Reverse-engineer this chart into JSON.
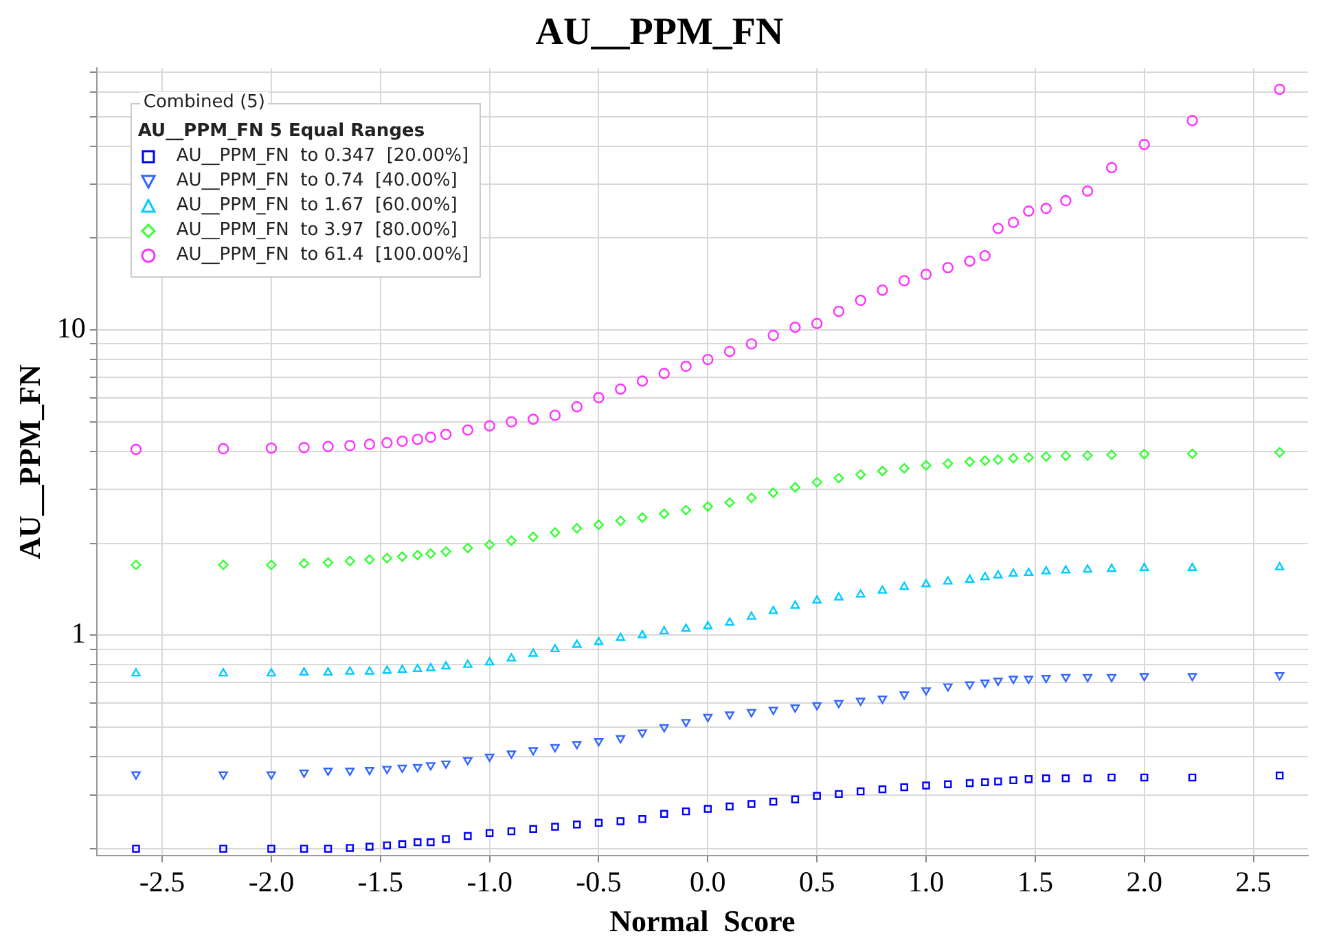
{
  "chart_data": {
    "type": "scatter",
    "title": "AU__PPM_FN",
    "xlabel": "Normal  Score",
    "ylabel": "AU__PPM_FN",
    "legend_title": "AU__PPM_FN 5 Equal Ranges",
    "annotations": [
      "Combined (5)"
    ],
    "x": [
      -2.62,
      -2.22,
      -2.0,
      -1.85,
      -1.74,
      -1.64,
      -1.55,
      -1.47,
      -1.4,
      -1.33,
      -1.27,
      -1.2,
      -1.1,
      -1.0,
      -0.9,
      -0.8,
      -0.7,
      -0.6,
      -0.5,
      -0.4,
      -0.3,
      -0.2,
      -0.1,
      0.0,
      0.1,
      0.2,
      0.3,
      0.4,
      0.5,
      0.6,
      0.7,
      0.8,
      0.9,
      1.0,
      1.1,
      1.2,
      1.27,
      1.33,
      1.4,
      1.47,
      1.55,
      1.64,
      1.74,
      1.85,
      2.0,
      2.22,
      2.62
    ],
    "series": [
      {
        "name": "AU__PPM_FN  to 0.347  [20.00%]",
        "color": "#0000ff",
        "marker": "square",
        "values": [
          0.2,
          0.2,
          0.2,
          0.2,
          0.2,
          0.201,
          0.203,
          0.205,
          0.207,
          0.21,
          0.21,
          0.215,
          0.22,
          0.225,
          0.228,
          0.232,
          0.236,
          0.24,
          0.243,
          0.246,
          0.25,
          0.26,
          0.265,
          0.27,
          0.275,
          0.28,
          0.285,
          0.29,
          0.298,
          0.302,
          0.308,
          0.313,
          0.318,
          0.322,
          0.325,
          0.328,
          0.33,
          0.332,
          0.335,
          0.338,
          0.34,
          0.34,
          0.34,
          0.342,
          0.342,
          0.342,
          0.347
        ]
      },
      {
        "name": "AU__PPM_FN  to 0.74  [40.00%]",
        "color": "#3366ff",
        "marker": "triangle-down",
        "values": [
          0.35,
          0.35,
          0.35,
          0.355,
          0.36,
          0.36,
          0.362,
          0.365,
          0.368,
          0.37,
          0.375,
          0.38,
          0.39,
          0.4,
          0.41,
          0.42,
          0.43,
          0.44,
          0.45,
          0.46,
          0.48,
          0.5,
          0.52,
          0.54,
          0.55,
          0.56,
          0.57,
          0.58,
          0.59,
          0.6,
          0.61,
          0.62,
          0.64,
          0.66,
          0.68,
          0.69,
          0.7,
          0.71,
          0.72,
          0.72,
          0.725,
          0.73,
          0.73,
          0.73,
          0.735,
          0.735,
          0.74
        ]
      },
      {
        "name": "AU__PPM_FN  to 1.67  [60.00%]",
        "color": "#00ccff",
        "marker": "triangle",
        "values": [
          0.75,
          0.75,
          0.75,
          0.755,
          0.755,
          0.76,
          0.76,
          0.765,
          0.77,
          0.775,
          0.78,
          0.79,
          0.8,
          0.815,
          0.84,
          0.87,
          0.9,
          0.93,
          0.95,
          0.98,
          1.0,
          1.03,
          1.05,
          1.07,
          1.1,
          1.15,
          1.2,
          1.25,
          1.3,
          1.33,
          1.36,
          1.4,
          1.44,
          1.47,
          1.5,
          1.52,
          1.55,
          1.57,
          1.59,
          1.6,
          1.62,
          1.63,
          1.64,
          1.65,
          1.66,
          1.66,
          1.67
        ]
      },
      {
        "name": "AU__PPM_FN  to 3.97  [80.00%]",
        "color": "#33ff33",
        "marker": "diamond",
        "values": [
          1.7,
          1.7,
          1.7,
          1.72,
          1.73,
          1.75,
          1.77,
          1.79,
          1.81,
          1.83,
          1.85,
          1.88,
          1.93,
          1.98,
          2.04,
          2.1,
          2.17,
          2.24,
          2.3,
          2.37,
          2.43,
          2.5,
          2.57,
          2.64,
          2.72,
          2.82,
          2.93,
          3.05,
          3.17,
          3.27,
          3.36,
          3.45,
          3.52,
          3.6,
          3.65,
          3.7,
          3.73,
          3.76,
          3.8,
          3.82,
          3.85,
          3.87,
          3.88,
          3.9,
          3.92,
          3.93,
          3.97
        ]
      },
      {
        "name": "AU__PPM_FN  to 61.4  [100.00%]",
        "color": "#ff33ff",
        "marker": "circle",
        "values": [
          4.06,
          4.08,
          4.1,
          4.12,
          4.15,
          4.18,
          4.22,
          4.27,
          4.32,
          4.38,
          4.45,
          4.55,
          4.7,
          4.85,
          5.0,
          5.1,
          5.25,
          5.6,
          6.0,
          6.4,
          6.8,
          7.2,
          7.6,
          8.0,
          8.5,
          9.0,
          9.6,
          10.2,
          10.5,
          11.5,
          12.5,
          13.5,
          14.5,
          15.2,
          16.0,
          16.8,
          17.5,
          21.5,
          22.5,
          24.5,
          25.0,
          26.5,
          28.5,
          34,
          40.5,
          48.5,
          61.4
        ]
      }
    ],
    "log": "y",
    "grid": true,
    "legend": "top left",
    "xlim": [
      -2.8,
      2.75
    ],
    "xticks": [
      {
        "value": -2.5,
        "label": "-2.5"
      },
      {
        "value": -2,
        "label": "-2.0"
      },
      {
        "value": -1.5,
        "label": "-1.5"
      },
      {
        "value": -1,
        "label": "-1.0"
      },
      {
        "value": -0.5,
        "label": "-0.5"
      },
      {
        "value": 0,
        "label": "0.0"
      },
      {
        "value": 0.5,
        "label": "0.5"
      },
      {
        "value": 1,
        "label": "1.0"
      },
      {
        "value": 1.5,
        "label": "1.5"
      },
      {
        "value": 2,
        "label": "2.0"
      },
      {
        "value": 2.5,
        "label": "2.5"
      }
    ],
    "ylim": [
      0.19,
      72
    ],
    "yticks": [
      {
        "value": 0.2,
        "label": null
      },
      {
        "value": 0.3,
        "label": null
      },
      {
        "value": 0.4,
        "label": null
      },
      {
        "value": 0.5,
        "label": null
      },
      {
        "value": 0.6,
        "label": null
      },
      {
        "value": 0.7,
        "label": null
      },
      {
        "value": 0.8,
        "label": null
      },
      {
        "value": 0.9,
        "label": null
      },
      1,
      {
        "value": 2,
        "label": null
      },
      {
        "value": 3,
        "label": null
      },
      {
        "value": 4,
        "label": null
      },
      {
        "value": 5,
        "label": null
      },
      {
        "value": 6,
        "label": null
      },
      {
        "value": 7,
        "label": null
      },
      {
        "value": 8,
        "label": null
      },
      {
        "value": 9,
        "label": null
      },
      10,
      {
        "value": 20,
        "label": null
      },
      {
        "value": 30,
        "label": null
      },
      {
        "value": 40,
        "label": null
      },
      {
        "value": 50,
        "label": null
      },
      {
        "value": 60,
        "label": null
      },
      {
        "value": 70,
        "label": null
      }
    ]
  }
}
